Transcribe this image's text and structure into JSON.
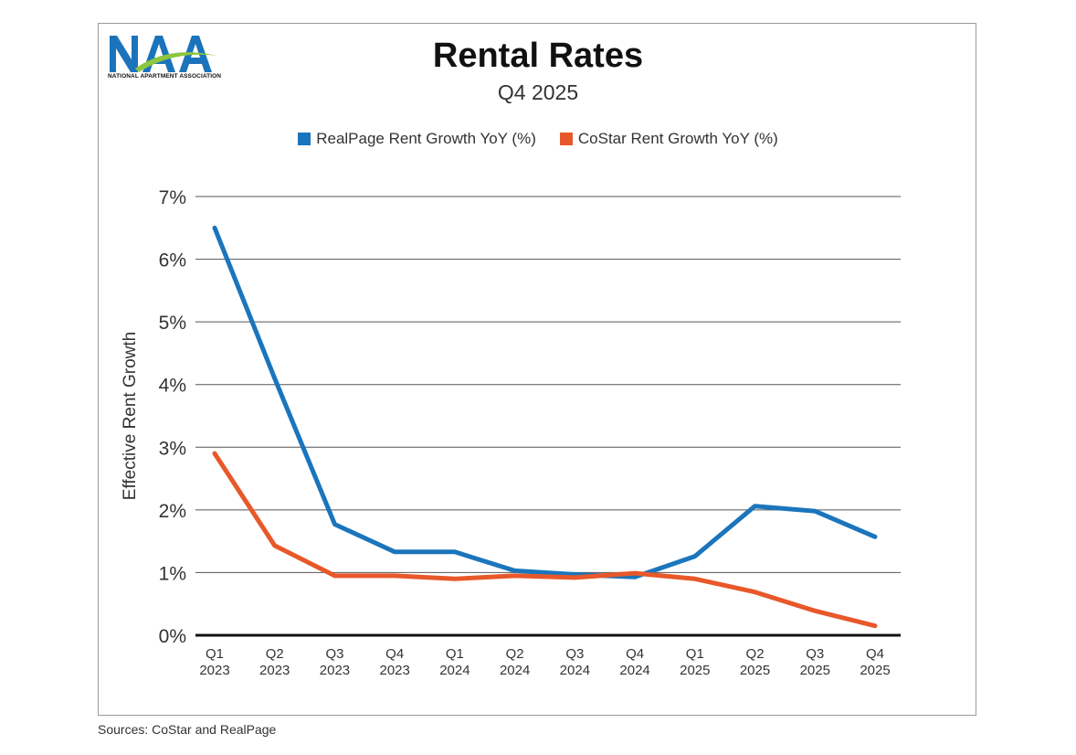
{
  "logo": {
    "mark": "NAA",
    "text": "NATIONAL APARTMENT ASSOCIATION",
    "colors": {
      "n": "#1b74bb",
      "a1": "#1b74bb",
      "a2": "#1b74bb",
      "swoosh": "#8dc63f"
    }
  },
  "sources": "Sources: CoStar and RealPage",
  "chart_data": {
    "type": "line",
    "title": "Rental Rates",
    "subtitle": "Q4 2025",
    "ylabel": "Effective Rent Growth",
    "xlabel": "",
    "ylim": [
      0,
      7
    ],
    "yticks": [
      0,
      1,
      2,
      3,
      4,
      5,
      6,
      7
    ],
    "ytick_labels": [
      "0%",
      "1%",
      "2%",
      "3%",
      "4%",
      "5%",
      "6%",
      "7%"
    ],
    "grid": true,
    "legend_position": "top-center",
    "categories": [
      [
        "Q1",
        "2023"
      ],
      [
        "Q2",
        "2023"
      ],
      [
        "Q3",
        "2023"
      ],
      [
        "Q4",
        "2023"
      ],
      [
        "Q1",
        "2024"
      ],
      [
        "Q2",
        "2024"
      ],
      [
        "Q3",
        "2024"
      ],
      [
        "Q4",
        "2024"
      ],
      [
        "Q1",
        "2025"
      ],
      [
        "Q2",
        "2025"
      ],
      [
        "Q3",
        "2025"
      ],
      [
        "Q4",
        "2025"
      ]
    ],
    "series": [
      {
        "name": "RealPage Rent Growth YoY (%)",
        "color": "#1b75bc",
        "values": [
          6.5,
          4.1,
          1.77,
          1.33,
          1.33,
          1.03,
          0.97,
          0.93,
          1.26,
          2.06,
          1.98,
          1.57
        ]
      },
      {
        "name": "CoStar Rent Growth YoY (%)",
        "color": "#e8582a",
        "values": [
          2.9,
          1.43,
          0.95,
          0.95,
          0.9,
          0.95,
          0.92,
          0.99,
          0.9,
          0.69,
          0.39,
          0.15
        ]
      }
    ]
  }
}
